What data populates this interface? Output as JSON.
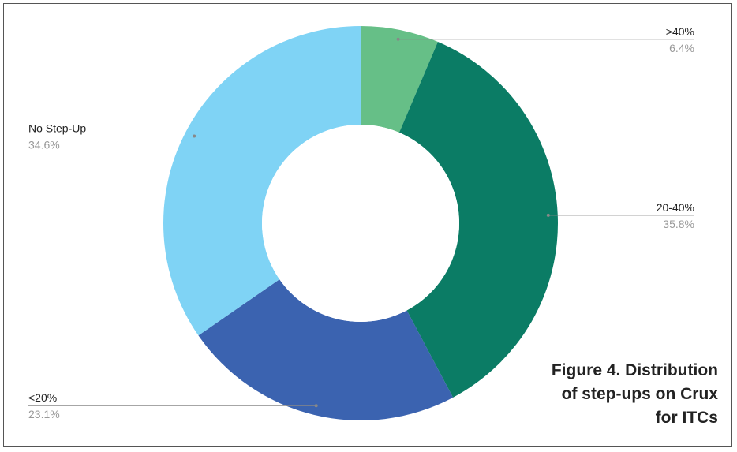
{
  "chart_data": {
    "type": "donut",
    "categories": [
      ">40%",
      "20-40%",
      "<20%",
      "No Step-Up"
    ],
    "values": [
      6.4,
      35.8,
      23.1,
      34.6
    ],
    "value_labels": [
      "6.4%",
      "35.8%",
      "23.1%",
      "34.6%"
    ],
    "colors": [
      "#66bf87",
      "#0b7c65",
      "#3b63b0",
      "#7fd3f5"
    ]
  },
  "caption": "Figure 4. Distribution of step-ups on Crux for ITCs"
}
